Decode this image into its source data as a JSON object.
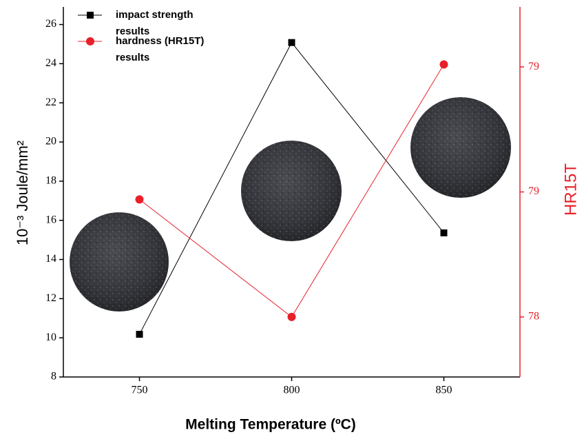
{
  "chart_data": {
    "type": "line",
    "x": [
      750,
      800,
      850
    ],
    "xlim": [
      725,
      875
    ],
    "xticks": [
      750,
      800,
      850
    ],
    "ylim": [
      8,
      26.9
    ],
    "yticks": [
      8,
      10,
      12,
      14,
      16,
      18,
      20,
      22,
      24,
      26
    ],
    "y2lim": [
      77.76,
      79.24
    ],
    "y2ticks": [
      {
        "value": 79.0,
        "label": "79"
      },
      {
        "value": 78.5,
        "label": "79"
      },
      {
        "value": 78.0,
        "label": "78"
      }
    ],
    "x_label": "Melting Temperature (ºC)",
    "y_label": "10⁻³ Joule/mm²",
    "y2_label": "HR15T",
    "series": [
      {
        "name": "impact strength results",
        "color": "#000000",
        "marker": "square",
        "values": [
          10.18,
          25.08,
          15.36
        ]
      },
      {
        "name": "hardness (HR15T) results",
        "color": "#e8202a",
        "marker": "circle",
        "axis": "y2",
        "values": [
          78.47,
          78.0,
          79.01
        ]
      }
    ]
  }
}
